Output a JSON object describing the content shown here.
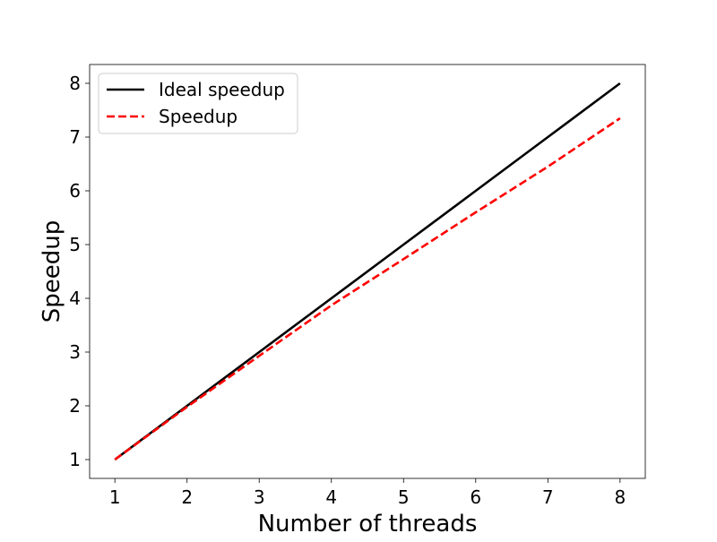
{
  "chart_data": {
    "type": "line",
    "xlabel": "Number of threads",
    "ylabel": "Speedup",
    "xlim": [
      0.65,
      8.35
    ],
    "ylim": [
      0.65,
      8.35
    ],
    "xticks": [
      "1",
      "2",
      "3",
      "4",
      "5",
      "6",
      "7",
      "8"
    ],
    "yticks": [
      "1",
      "2",
      "3",
      "4",
      "5",
      "6",
      "7",
      "8"
    ],
    "grid": false,
    "legend_position": "upper-left",
    "series": [
      {
        "name": "Ideal speedup",
        "color": "#000000",
        "linestyle": "solid",
        "x": [
          1,
          2,
          3,
          4,
          5,
          6,
          7,
          8
        ],
        "y": [
          1,
          2,
          3,
          4,
          5,
          6,
          7,
          8
        ]
      },
      {
        "name": "Speedup",
        "color": "#ff0000",
        "linestyle": "dashed",
        "x": [
          1,
          2,
          3,
          4,
          5,
          6,
          7,
          8
        ],
        "y": [
          1,
          1.98,
          2.93,
          3.87,
          4.73,
          5.6,
          6.45,
          7.35
        ]
      }
    ]
  }
}
